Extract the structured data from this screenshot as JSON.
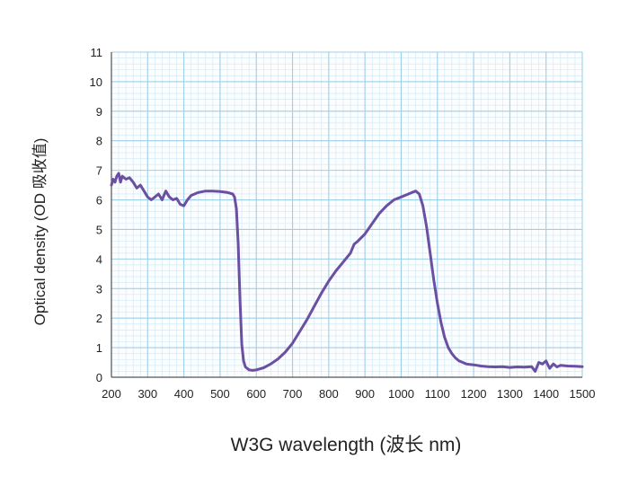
{
  "chart_data": {
    "type": "line",
    "title": "",
    "xlabel": "W3G wavelength (波长 nm)",
    "ylabel": "Optical density (OD 吸收值)",
    "xlim": [
      200,
      1500
    ],
    "ylim": [
      0,
      11
    ],
    "x_ticks": [
      200,
      300,
      400,
      500,
      600,
      700,
      800,
      900,
      1000,
      1100,
      1200,
      1300,
      1400,
      1500
    ],
    "y_ticks": [
      0,
      1,
      2,
      3,
      4,
      5,
      6,
      7,
      8,
      9,
      10,
      11
    ],
    "x_tick_labels": [
      "200",
      "300",
      "400",
      "500",
      "600",
      "700",
      "800",
      "900",
      "1000",
      "1100",
      "1200",
      "1300",
      "1400",
      "1500"
    ],
    "y_tick_labels": [
      "0",
      "1",
      "2",
      "3",
      "4",
      "5",
      "6",
      "7",
      "8",
      "9",
      "10",
      "11"
    ],
    "grid": true,
    "legend": "none",
    "colors": {
      "line": "#6a4fa3",
      "grid": "#9ecfe8",
      "axis": "#555555"
    },
    "series": [
      {
        "x": [
          200,
          205,
          210,
          215,
          220,
          225,
          230,
          240,
          250,
          260,
          270,
          280,
          290,
          300,
          310,
          320,
          330,
          340,
          350,
          360,
          370,
          380,
          390,
          400,
          410,
          420,
          440,
          460,
          480,
          500,
          520,
          535,
          540,
          545,
          550,
          555,
          560,
          565,
          570,
          580,
          590,
          600,
          620,
          640,
          660,
          680,
          700,
          720,
          740,
          760,
          780,
          800,
          820,
          840,
          860,
          870,
          880,
          900,
          920,
          940,
          960,
          980,
          1000,
          1020,
          1030,
          1040,
          1050,
          1060,
          1070,
          1080,
          1090,
          1100,
          1110,
          1120,
          1130,
          1140,
          1150,
          1160,
          1170,
          1180,
          1190,
          1200,
          1210,
          1220,
          1240,
          1260,
          1280,
          1300,
          1320,
          1340,
          1360,
          1370,
          1380,
          1390,
          1400,
          1410,
          1420,
          1430,
          1440,
          1460,
          1480,
          1500
        ],
        "y": [
          6.5,
          6.7,
          6.6,
          6.8,
          6.9,
          6.6,
          6.8,
          6.7,
          6.75,
          6.6,
          6.4,
          6.5,
          6.3,
          6.1,
          6.0,
          6.1,
          6.2,
          6.0,
          6.3,
          6.1,
          6.0,
          6.05,
          5.85,
          5.8,
          6.0,
          6.15,
          6.25,
          6.3,
          6.3,
          6.28,
          6.25,
          6.2,
          6.1,
          5.7,
          4.5,
          2.6,
          1.1,
          0.55,
          0.35,
          0.25,
          0.23,
          0.25,
          0.32,
          0.45,
          0.62,
          0.85,
          1.15,
          1.55,
          1.95,
          2.4,
          2.85,
          3.25,
          3.6,
          3.9,
          4.2,
          4.5,
          4.6,
          4.85,
          5.2,
          5.55,
          5.8,
          6.0,
          6.1,
          6.2,
          6.25,
          6.3,
          6.2,
          5.8,
          5.1,
          4.2,
          3.3,
          2.5,
          1.85,
          1.35,
          1.0,
          0.8,
          0.65,
          0.55,
          0.5,
          0.45,
          0.43,
          0.42,
          0.4,
          0.38,
          0.36,
          0.35,
          0.36,
          0.33,
          0.35,
          0.34,
          0.36,
          0.2,
          0.5,
          0.45,
          0.55,
          0.3,
          0.45,
          0.35,
          0.4,
          0.38,
          0.37,
          0.36
        ]
      }
    ]
  }
}
